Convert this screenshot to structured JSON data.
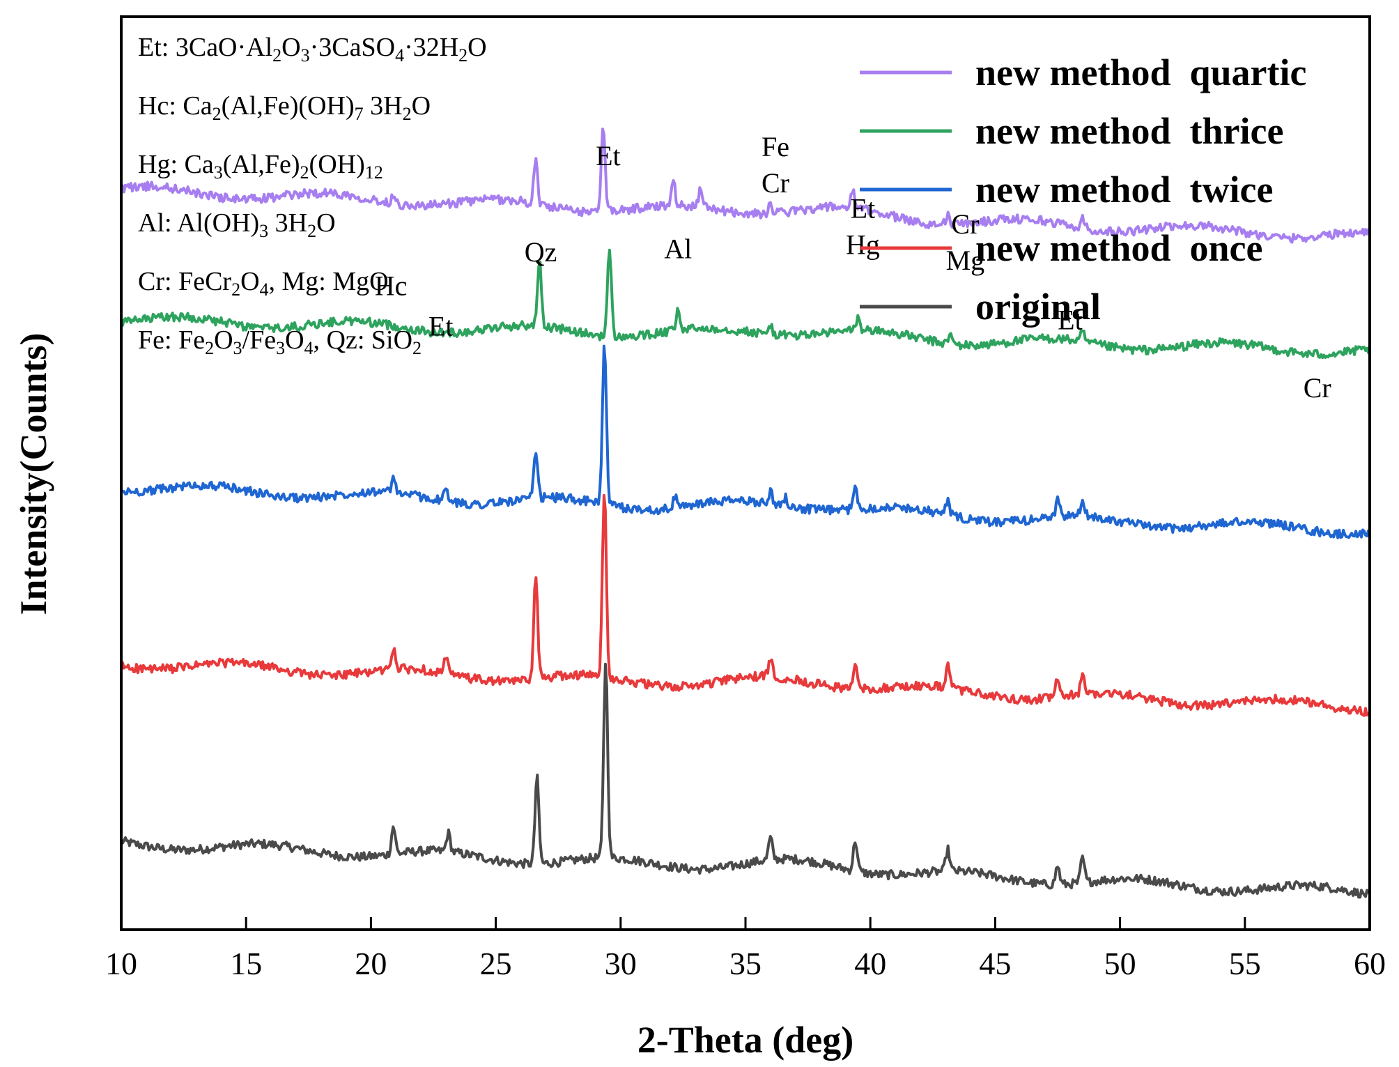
{
  "chart_data": {
    "type": "line",
    "xlabel": "2-Theta (deg)",
    "ylabel": "Intensity(Counts)",
    "xlim": [
      10,
      60
    ],
    "x_ticks": [
      10,
      15,
      20,
      25,
      30,
      35,
      40,
      45,
      50,
      55,
      60
    ],
    "y_ticks_shown": false,
    "legend_position": "top-right",
    "phase_key": [
      {
        "code": "Et",
        "sep": ": ",
        "parts": [
          [
            "3CaO·Al",
            ""
          ],
          [
            "2",
            "sub"
          ],
          [
            "O",
            ""
          ],
          [
            "3",
            "sub"
          ],
          [
            "·3CaSO",
            ""
          ],
          [
            "4",
            "sub"
          ],
          [
            "·32H",
            ""
          ],
          [
            "2",
            "sub"
          ],
          [
            "O",
            ""
          ]
        ]
      },
      {
        "code": "Hc",
        "sep": ": ",
        "parts": [
          [
            "Ca",
            ""
          ],
          [
            "2",
            "sub"
          ],
          [
            "(Al,Fe)(OH)",
            ""
          ],
          [
            "7",
            "sub"
          ],
          [
            " 3H",
            ""
          ],
          [
            "2",
            "sub"
          ],
          [
            "O",
            ""
          ]
        ]
      },
      {
        "code": "Hg",
        "sep": ": ",
        "parts": [
          [
            "Ca",
            ""
          ],
          [
            "3",
            "sub"
          ],
          [
            "(Al,Fe)",
            ""
          ],
          [
            "2",
            "sub"
          ],
          [
            "(OH)",
            ""
          ],
          [
            "12",
            "sub"
          ]
        ]
      },
      {
        "code": "Al",
        "sep": ": ",
        "parts": [
          [
            "Al(OH)",
            ""
          ],
          [
            "3",
            "sub"
          ],
          [
            " 3H",
            ""
          ],
          [
            "2",
            "sub"
          ],
          [
            "O",
            ""
          ]
        ]
      },
      {
        "code": "Cr",
        "sep": ": ",
        "parts": [
          [
            "FeCr",
            ""
          ],
          [
            "2",
            "sub"
          ],
          [
            "O",
            ""
          ],
          [
            "4",
            "sub"
          ],
          [
            ",  Mg: MgO",
            ""
          ]
        ]
      },
      {
        "code": "Fe",
        "sep": ": ",
        "parts": [
          [
            "Fe",
            ""
          ],
          [
            "2",
            "sub"
          ],
          [
            "O",
            ""
          ],
          [
            "3",
            "sub"
          ],
          [
            "/Fe",
            ""
          ],
          [
            "3",
            "sub"
          ],
          [
            "O",
            ""
          ],
          [
            "4",
            "sub"
          ],
          [
            ",  Qz: SiO",
            ""
          ],
          [
            "2",
            "sub"
          ]
        ]
      }
    ],
    "peak_labels": [
      {
        "x": 20.8,
        "level": 2.05,
        "lines": [
          "Hc"
        ]
      },
      {
        "x": 22.8,
        "level": 1.92,
        "lines": [
          "Et"
        ]
      },
      {
        "x": 26.8,
        "level": 2.16,
        "lines": [
          "Qz"
        ]
      },
      {
        "x": 29.5,
        "level": 2.47,
        "lines": [
          "Et"
        ]
      },
      {
        "x": 32.3,
        "level": 2.17,
        "lines": [
          "Al"
        ]
      },
      {
        "x": 36.2,
        "level": 2.5,
        "lines": [
          "Fe",
          "Cr"
        ]
      },
      {
        "x": 39.7,
        "level": 2.3,
        "lines": [
          "Et",
          "Hg"
        ]
      },
      {
        "x": 43.8,
        "level": 2.25,
        "lines": [
          "Cr",
          "Mg"
        ]
      },
      {
        "x": 48.0,
        "level": 1.94,
        "lines": [
          "Et"
        ]
      },
      {
        "x": 57.9,
        "level": 1.72,
        "lines": [
          "Cr"
        ]
      }
    ],
    "series": [
      {
        "name": "original",
        "color": "#4a4a4a",
        "baseline_start": 0.28,
        "baseline_end": 0.12,
        "peaks": [
          {
            "x": 20.9,
            "h": 0.09
          },
          {
            "x": 23.1,
            "h": 0.06
          },
          {
            "x": 26.65,
            "h": 0.28
          },
          {
            "x": 29.4,
            "h": 0.64
          },
          {
            "x": 36.0,
            "h": 0.07
          },
          {
            "x": 39.4,
            "h": 0.1
          },
          {
            "x": 43.1,
            "h": 0.07
          },
          {
            "x": 47.5,
            "h": 0.06
          },
          {
            "x": 48.5,
            "h": 0.08
          }
        ]
      },
      {
        "name": "new method  once",
        "color": "#e8393b",
        "baseline_start": 0.86,
        "baseline_end": 0.72,
        "peaks": [
          {
            "x": 20.9,
            "h": 0.07
          },
          {
            "x": 23.0,
            "h": 0.05
          },
          {
            "x": 26.6,
            "h": 0.34
          },
          {
            "x": 29.35,
            "h": 0.6
          },
          {
            "x": 36.0,
            "h": 0.06
          },
          {
            "x": 39.4,
            "h": 0.08
          },
          {
            "x": 43.1,
            "h": 0.07
          },
          {
            "x": 47.5,
            "h": 0.06
          },
          {
            "x": 48.5,
            "h": 0.06
          }
        ]
      },
      {
        "name": "new method  twice",
        "color": "#1f66d2",
        "baseline_start": 1.43,
        "baseline_end": 1.29,
        "peaks": [
          {
            "x": 20.9,
            "h": 0.04
          },
          {
            "x": 23.0,
            "h": 0.04
          },
          {
            "x": 26.6,
            "h": 0.14
          },
          {
            "x": 29.35,
            "h": 0.53
          },
          {
            "x": 32.2,
            "h": 0.04
          },
          {
            "x": 36.0,
            "h": 0.04
          },
          {
            "x": 36.6,
            "h": 0.03
          },
          {
            "x": 39.4,
            "h": 0.07
          },
          {
            "x": 43.1,
            "h": 0.05
          },
          {
            "x": 47.5,
            "h": 0.05
          },
          {
            "x": 48.5,
            "h": 0.05
          }
        ]
      },
      {
        "name": "new method  thrice",
        "color": "#2ea35e",
        "baseline_start": 1.97,
        "baseline_end": 1.87,
        "peaks": [
          {
            "x": 26.75,
            "h": 0.21
          },
          {
            "x": 29.55,
            "h": 0.28
          },
          {
            "x": 32.3,
            "h": 0.06
          },
          {
            "x": 36.0,
            "h": 0.03
          },
          {
            "x": 39.5,
            "h": 0.04
          },
          {
            "x": 43.2,
            "h": 0.03
          },
          {
            "x": 48.5,
            "h": 0.03
          }
        ]
      },
      {
        "name": "new method  quartic",
        "color": "#a77ef0",
        "baseline_start": 2.39,
        "baseline_end": 2.24,
        "peaks": [
          {
            "x": 20.9,
            "h": 0.03
          },
          {
            "x": 26.6,
            "h": 0.14
          },
          {
            "x": 29.3,
            "h": 0.28
          },
          {
            "x": 32.1,
            "h": 0.09
          },
          {
            "x": 33.2,
            "h": 0.06
          },
          {
            "x": 36.0,
            "h": 0.03
          },
          {
            "x": 39.3,
            "h": 0.05
          },
          {
            "x": 43.1,
            "h": 0.03
          },
          {
            "x": 48.5,
            "h": 0.03
          }
        ]
      }
    ],
    "legend_order": [
      "new method  quartic",
      "new method  thrice",
      "new method  twice",
      "new method  once",
      "original"
    ]
  }
}
